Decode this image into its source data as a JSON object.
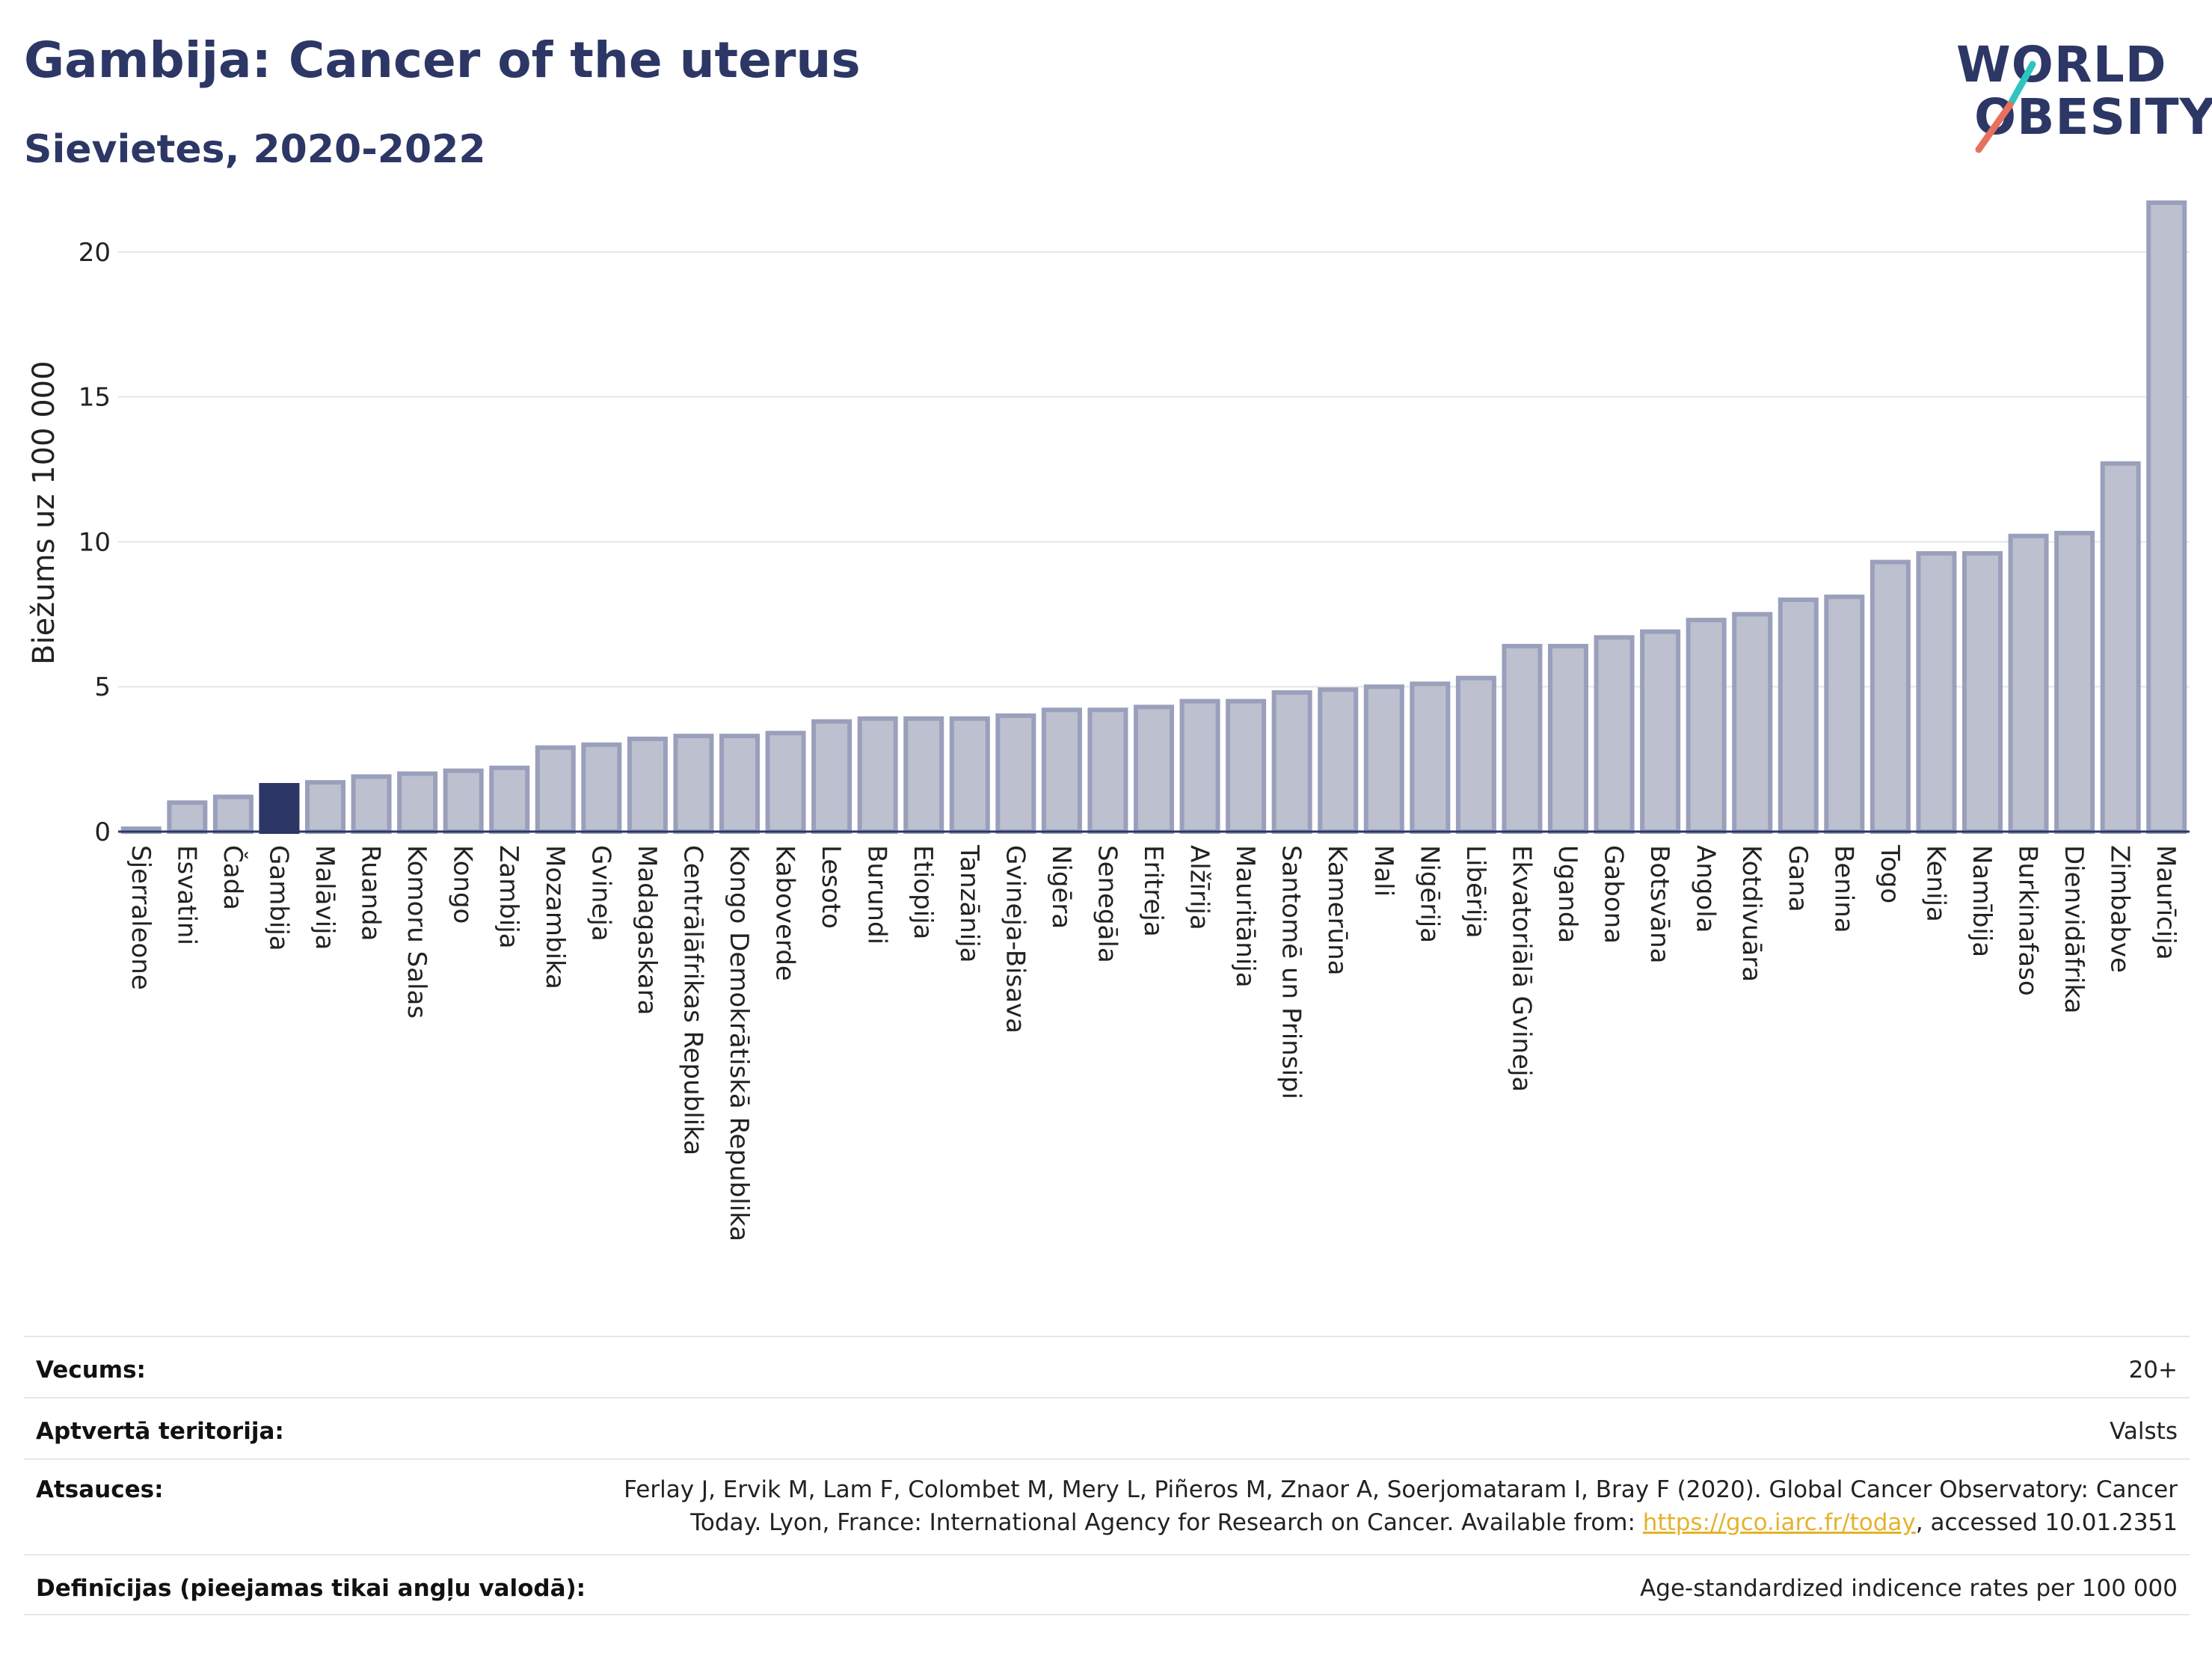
{
  "title": "Gambija: Cancer of the uterus",
  "subtitle": "Sievietes, 2020-2022",
  "logo": {
    "line1": "WORLD",
    "line2": "OBESITY"
  },
  "colors": {
    "bar": "#bcc0cf",
    "bar_border": "#9aa0bb",
    "highlight": "#2c3766",
    "title": "#2c3766",
    "link": "#e3b32a"
  },
  "chart_data": {
    "type": "bar",
    "ylabel": "Biežums uz 100 000",
    "xlabel": "",
    "ylim": [
      0,
      22.5
    ],
    "yticks": [
      0,
      5,
      10,
      15,
      20
    ],
    "grid": true,
    "highlight": "Gambija",
    "categories": [
      "Sjerraleone",
      "Esvatini",
      "Čada",
      "Gambija",
      "Malāvija",
      "Ruanda",
      "Komoru Salas",
      "Kongo",
      "Zambija",
      "Mozambika",
      "Gvineja",
      "Madagaskara",
      "Centrālāfrikas Republika",
      "Kongo Demokrātiskā Republika",
      "Kaboverde",
      "Lesoto",
      "Burundi",
      "Etiopija",
      "Tanzānija",
      "Gvineja-Bisava",
      "Nigēra",
      "Senegāla",
      "Eritreja",
      "Alžīrija",
      "Mauritānija",
      "Santomē un Prinsipi",
      "Kamerūna",
      "Mali",
      "Nigērija",
      "Libērija",
      "Ekvatoriālā Gvineja",
      "Uganda",
      "Gabona",
      "Botsvāna",
      "Angola",
      "Kotdivuāra",
      "Gana",
      "Benina",
      "Togo",
      "Kenija",
      "Namībija",
      "Burkinafaso",
      "Dienvidāfrika",
      "Zimbabve",
      "Maurīcija"
    ],
    "values": [
      0.1,
      1.0,
      1.2,
      1.6,
      1.7,
      1.9,
      2.0,
      2.1,
      2.2,
      2.9,
      3.0,
      3.2,
      3.3,
      3.3,
      3.4,
      3.8,
      3.9,
      3.9,
      3.9,
      4.0,
      4.2,
      4.2,
      4.3,
      4.5,
      4.5,
      4.8,
      4.9,
      5.0,
      5.1,
      5.3,
      6.4,
      6.4,
      6.7,
      6.9,
      7.3,
      7.5,
      8.0,
      8.1,
      9.3,
      9.6,
      9.6,
      10.2,
      10.3,
      12.7,
      21.7
    ]
  },
  "meta": {
    "age_label": "Vecums:",
    "age_value": "20+",
    "coverage_label": "Aptvertā teritorija:",
    "coverage_value": "Valsts",
    "refs_label": "Atsauces:",
    "refs_text1": "Ferlay J, Ervik M, Lam F, Colombet M, Mery L, Piñeros M, Znaor A, Soerjomataram I, Bray F (2020). Global Cancer Observatory: Cancer",
    "refs_text2a": "Today. Lyon, France: International Agency for Research on Cancer. Available from: ",
    "refs_link": "https://gco.iarc.fr/today",
    "refs_text2b": ", accessed 10.01.2351",
    "defs_label": "Definīcijas (pieejamas tikai angļu valodā):",
    "defs_value": "Age-standardized indicence rates per 100 000"
  }
}
